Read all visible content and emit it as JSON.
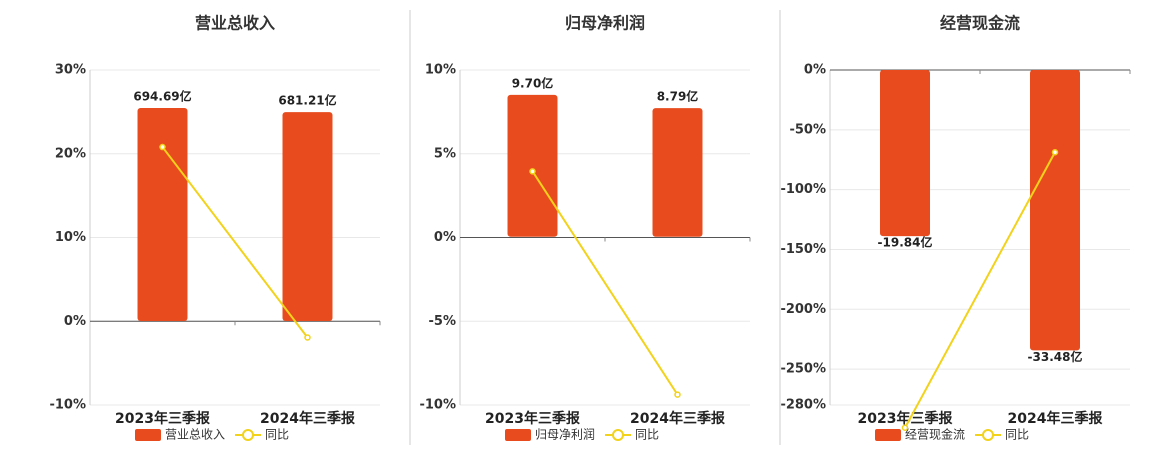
{
  "chart_data": [
    {
      "type": "bar",
      "title": "营业总收入",
      "categories": [
        "2023年三季报",
        "2024年三季报"
      ],
      "series": [
        {
          "name": "营业总收入",
          "color": "#e84c1e",
          "axis": "y2",
          "values": [
            694.69,
            681.21
          ],
          "value_labels": [
            "694.69亿",
            "681.21亿"
          ]
        },
        {
          "name": "同比",
          "type": "line",
          "color": "#f2d21a",
          "values": [
            20.8,
            -1.94
          ]
        }
      ],
      "ylim": [
        -10,
        30
      ],
      "yticks": [
        {
          "value": -10,
          "label": "-10%"
        },
        {
          "value": 0,
          "label": "0%"
        },
        {
          "value": 10,
          "label": "10%"
        },
        {
          "value": 20,
          "label": "20%"
        },
        {
          "value": 30,
          "label": "30%"
        }
      ],
      "y2lim": [
        -274,
        818.6
      ],
      "grid": true
    },
    {
      "type": "bar",
      "title": "归母净利润",
      "categories": [
        "2023年三季报",
        "2024年三季报"
      ],
      "series": [
        {
          "name": "归母净利润",
          "color": "#e84c1e",
          "axis": "y2",
          "values": [
            9.7,
            8.79
          ],
          "value_labels": [
            "9.70亿",
            "8.79亿"
          ]
        },
        {
          "name": "同比",
          "type": "line",
          "color": "#f2d21a",
          "values": [
            3.95,
            -9.38
          ]
        }
      ],
      "ylim": [
        -10,
        10
      ],
      "yticks": [
        {
          "value": -10,
          "label": "-10%"
        },
        {
          "value": -5,
          "label": "-5%"
        },
        {
          "value": 0,
          "label": "0%"
        },
        {
          "value": 5,
          "label": "5%"
        },
        {
          "value": 10,
          "label": "10%"
        }
      ],
      "y2lim": [
        -11.5,
        11.4
      ],
      "grid": true
    },
    {
      "type": "bar",
      "title": "经营现金流",
      "categories": [
        "2023年三季报",
        "2024年三季报"
      ],
      "series": [
        {
          "name": "经营现金流",
          "color": "#e84c1e",
          "axis": "y2",
          "values": [
            -19.84,
            -33.48
          ],
          "value_labels": [
            "-19.84亿",
            "-33.48亿"
          ]
        },
        {
          "name": "同比",
          "type": "line",
          "color": "#f2d21a",
          "values": [
            -299,
            -68.75
          ]
        }
      ],
      "ylim": [
        -280,
        0
      ],
      "yticks": [
        {
          "value": -280,
          "label": "-280%"
        },
        {
          "value": -250,
          "label": "-250%"
        },
        {
          "value": -200,
          "label": "-200%"
        },
        {
          "value": -150,
          "label": "-150%"
        },
        {
          "value": -100,
          "label": "-100%"
        },
        {
          "value": -50,
          "label": "-50%"
        },
        {
          "value": 0,
          "label": "0%"
        }
      ],
      "y2lim": [
        -40,
        0
      ],
      "grid": true
    }
  ]
}
